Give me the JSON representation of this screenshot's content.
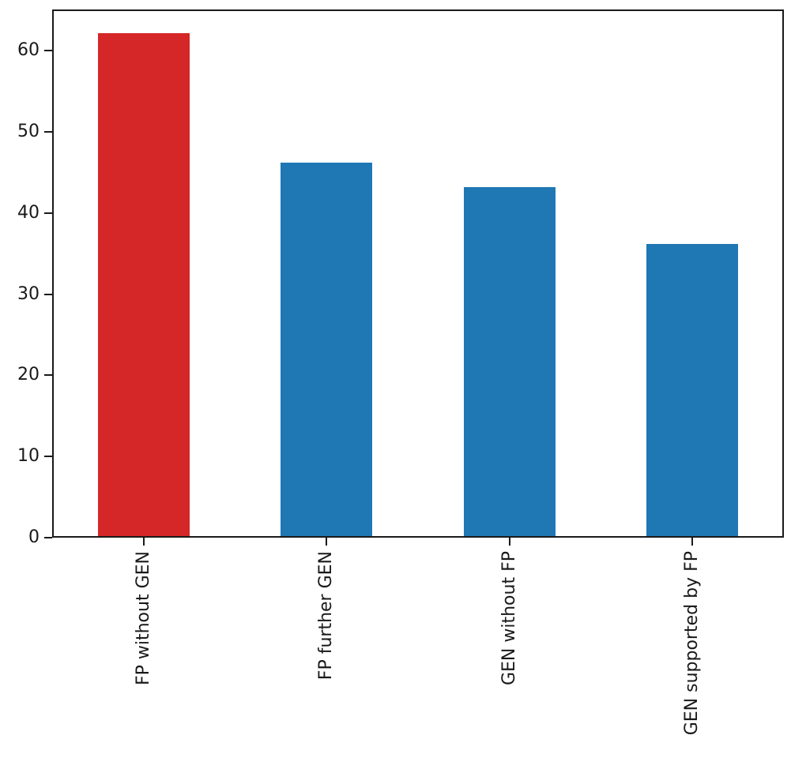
{
  "chart_data": {
    "type": "bar",
    "categories": [
      "FP without GEN",
      "FP further GEN",
      "GEN without FP",
      "GEN supported by FP"
    ],
    "values": [
      62,
      46,
      43,
      36
    ],
    "bar_colors": [
      "#d62728",
      "#1f77b4",
      "#1f77b4",
      "#1f77b4"
    ],
    "title": "",
    "xlabel": "",
    "ylabel": "",
    "ylim": [
      0,
      65.1
    ],
    "yticks": [
      0,
      10,
      20,
      30,
      40,
      50,
      60
    ],
    "x_tick_rotation": 90,
    "bar_width_fraction": 0.5,
    "grid": false,
    "legend": null,
    "spine_color": "#1a1a1a",
    "tick_label_color": "#191919",
    "background_color": "#ffffff"
  }
}
